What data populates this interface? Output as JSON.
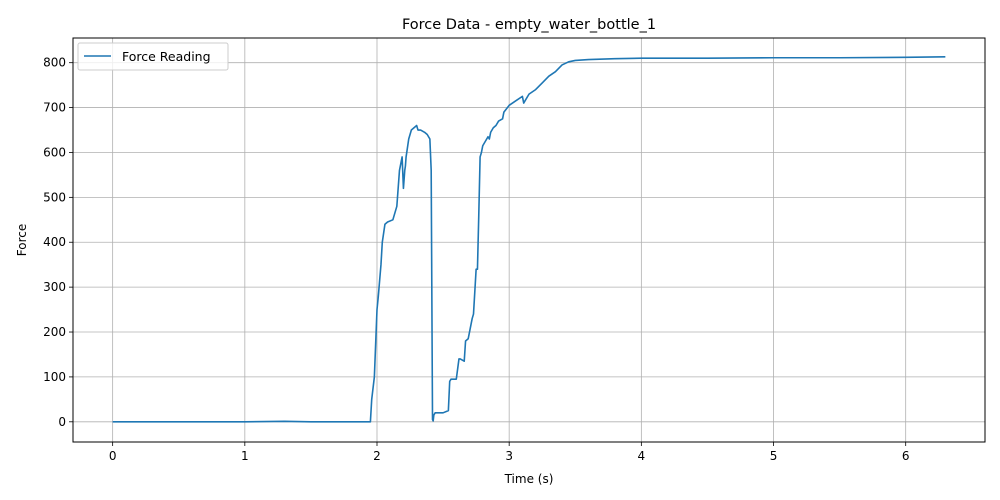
{
  "chart_data": {
    "type": "line",
    "title": "Force Data - empty_water_bottle_1",
    "xlabel": "Time (s)",
    "ylabel": "Force",
    "xlim": [
      -0.3,
      6.6
    ],
    "ylim": [
      -45,
      855
    ],
    "xticks": [
      0,
      1,
      2,
      3,
      4,
      5,
      6
    ],
    "yticks": [
      0,
      100,
      200,
      300,
      400,
      500,
      600,
      700,
      800
    ],
    "grid": true,
    "legend_position": "top-left",
    "series": [
      {
        "name": "Force Reading",
        "color": "#1f77b4",
        "x": [
          0,
          0.5,
          1.0,
          1.3,
          1.5,
          1.95,
          1.96,
          1.98,
          2.0,
          2.01,
          2.03,
          2.04,
          2.06,
          2.08,
          2.12,
          2.15,
          2.17,
          2.19,
          2.2,
          2.21,
          2.215,
          2.22,
          2.24,
          2.26,
          2.28,
          2.3,
          2.31,
          2.33,
          2.36,
          2.38,
          2.4,
          2.41,
          2.42,
          2.425,
          2.43,
          2.44,
          2.45,
          2.5,
          2.54,
          2.55,
          2.56,
          2.6,
          2.62,
          2.63,
          2.66,
          2.67,
          2.69,
          2.72,
          2.73,
          2.75,
          2.76,
          2.77,
          2.78,
          2.79,
          2.8,
          2.82,
          2.84,
          2.85,
          2.86,
          2.88,
          2.9,
          2.92,
          2.95,
          2.96,
          3.0,
          3.05,
          3.1,
          3.11,
          3.15,
          3.2,
          3.25,
          3.3,
          3.35,
          3.4,
          3.45,
          3.5,
          3.6,
          3.8,
          4.0,
          4.5,
          5.0,
          5.5,
          6.0,
          6.3
        ],
        "values": [
          0,
          0,
          0,
          1,
          0,
          0,
          50,
          100,
          250,
          280,
          350,
          400,
          440,
          445,
          450,
          480,
          560,
          590,
          520,
          560,
          570,
          590,
          630,
          650,
          655,
          660,
          650,
          650,
          645,
          640,
          630,
          560,
          5,
          2,
          15,
          20,
          20,
          20,
          25,
          90,
          95,
          95,
          140,
          140,
          135,
          180,
          185,
          230,
          240,
          340,
          340,
          460,
          590,
          600,
          615,
          625,
          635,
          630,
          645,
          655,
          660,
          670,
          675,
          690,
          705,
          715,
          725,
          710,
          730,
          740,
          755,
          770,
          780,
          795,
          802,
          805,
          807,
          809,
          810,
          810,
          811,
          811,
          812,
          813
        ]
      }
    ]
  }
}
